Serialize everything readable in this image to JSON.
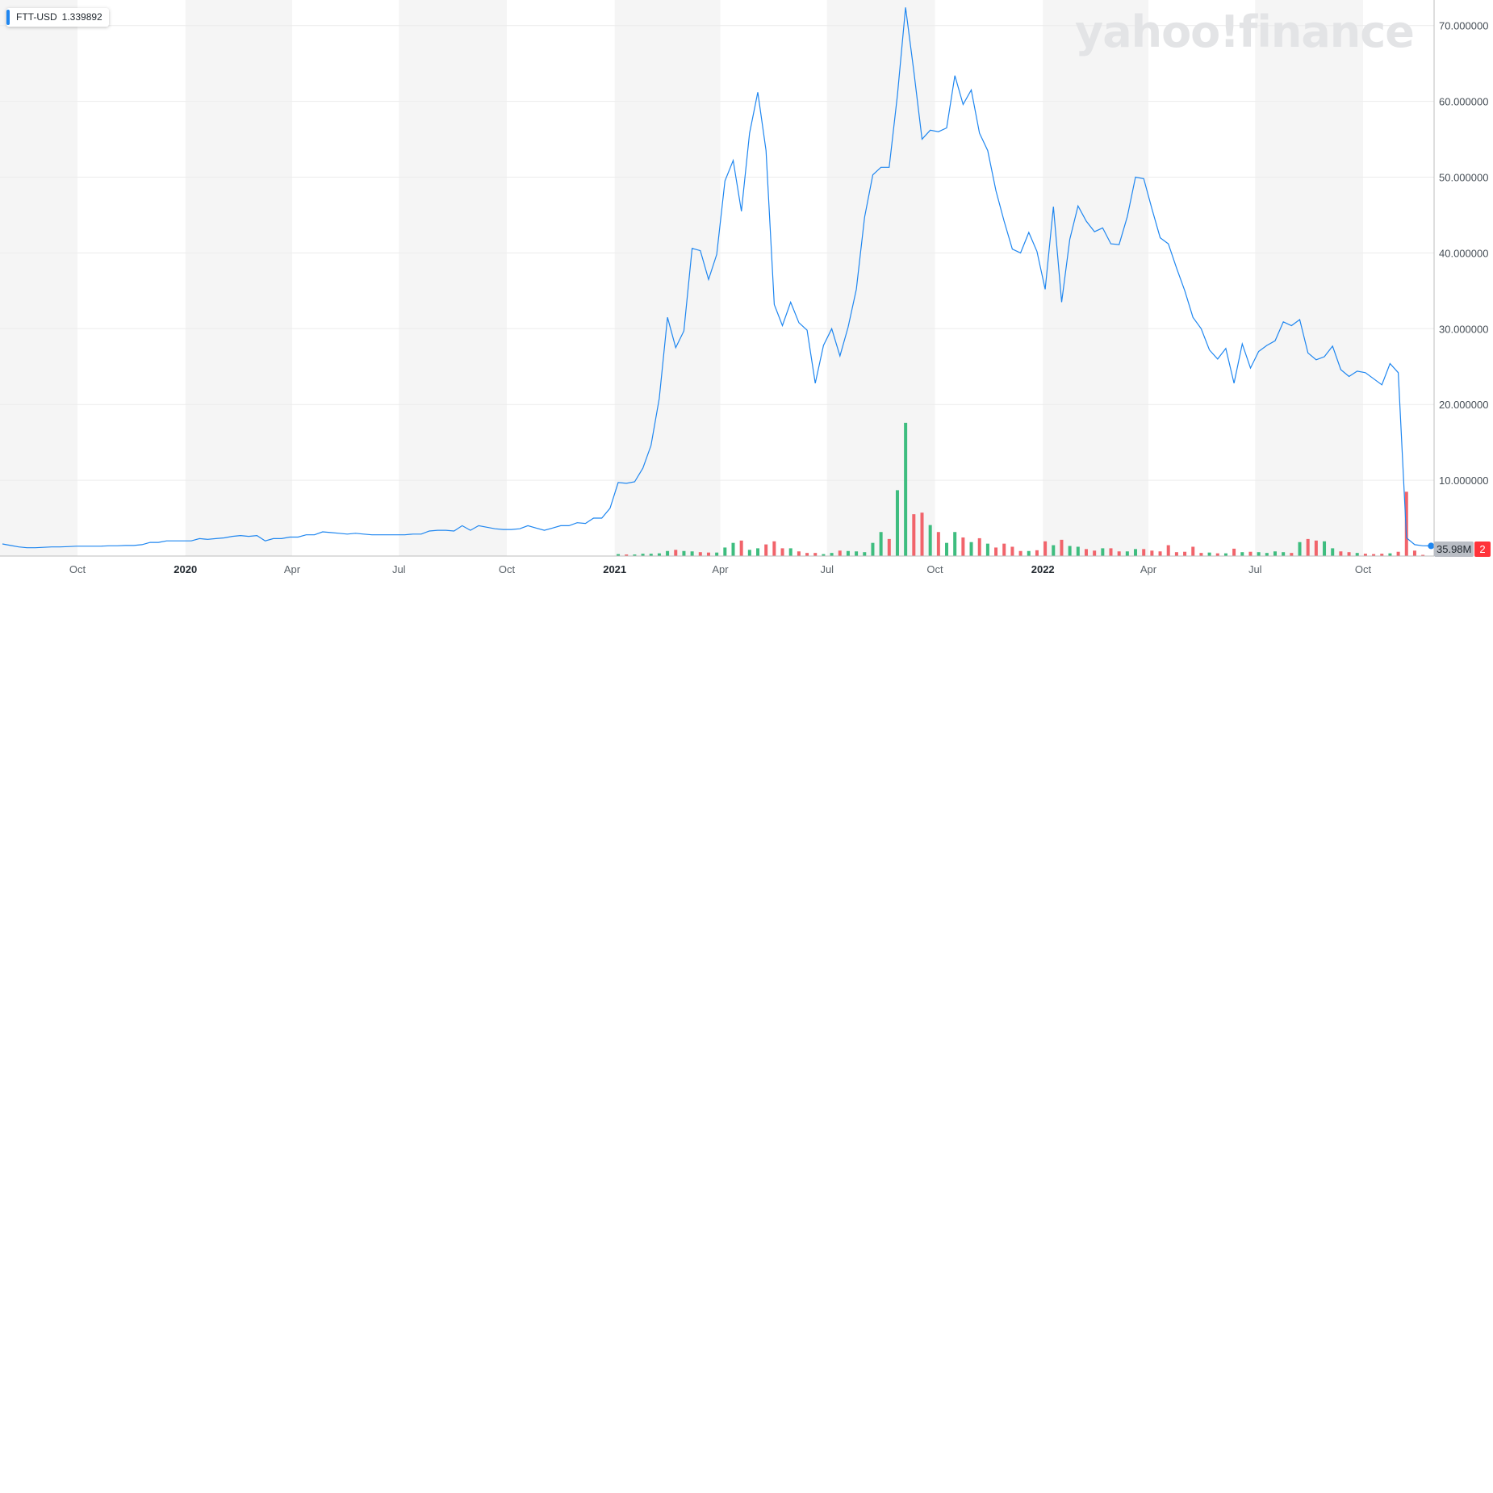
{
  "legend": {
    "symbol": "FTT-USD",
    "value": "1.339892"
  },
  "watermark": "yahoo!finance",
  "badges": {
    "volume": "35.98M",
    "price": "2"
  },
  "colors": {
    "line": "#1e86f0",
    "vol_up": "#3ebd7f",
    "vol_down": "#f1646b",
    "band": "#f5f5f5",
    "grid": "#ececec"
  },
  "chart_data": {
    "type": "line",
    "title": "",
    "xlabel": "",
    "ylabel": "",
    "ylim": [
      0,
      73
    ],
    "grid": true,
    "legend_position": "top-left",
    "y_ticks": [
      "10.000000",
      "20.000000",
      "30.000000",
      "40.000000",
      "50.000000",
      "60.000000",
      "70.000000"
    ],
    "x_ticks": [
      "Oct",
      "2020",
      "Apr",
      "Jul",
      "Oct",
      "2021",
      "Apr",
      "Jul",
      "Oct",
      "2022",
      "Apr",
      "Jul",
      "Oct"
    ],
    "x_tick_dates": [
      "2019-10-01",
      "2020-01-01",
      "2020-04-01",
      "2020-07-01",
      "2020-10-01",
      "2021-01-01",
      "2021-04-01",
      "2021-07-01",
      "2021-10-01",
      "2022-01-01",
      "2022-04-01",
      "2022-07-01",
      "2022-10-01"
    ],
    "series": [
      {
        "values": [
          [
            "2019-07-29",
            1.6
          ],
          [
            "2019-08-05",
            1.4
          ],
          [
            "2019-08-12",
            1.2
          ],
          [
            "2019-08-19",
            1.1
          ],
          [
            "2019-08-26",
            1.1
          ],
          [
            "2019-09-02",
            1.15
          ],
          [
            "2019-09-09",
            1.2
          ],
          [
            "2019-09-16",
            1.2
          ],
          [
            "2019-09-23",
            1.25
          ],
          [
            "2019-09-30",
            1.3
          ],
          [
            "2019-10-07",
            1.3
          ],
          [
            "2019-10-14",
            1.3
          ],
          [
            "2019-10-21",
            1.3
          ],
          [
            "2019-10-28",
            1.35
          ],
          [
            "2019-11-04",
            1.35
          ],
          [
            "2019-11-11",
            1.4
          ],
          [
            "2019-11-18",
            1.4
          ],
          [
            "2019-11-25",
            1.5
          ],
          [
            "2019-12-02",
            1.8
          ],
          [
            "2019-12-09",
            1.8
          ],
          [
            "2019-12-16",
            2.0
          ],
          [
            "2019-12-23",
            2.0
          ],
          [
            "2019-12-30",
            2.0
          ],
          [
            "2020-01-06",
            2.0
          ],
          [
            "2020-01-13",
            2.3
          ],
          [
            "2020-01-20",
            2.2
          ],
          [
            "2020-01-27",
            2.3
          ],
          [
            "2020-02-03",
            2.4
          ],
          [
            "2020-02-10",
            2.6
          ],
          [
            "2020-02-17",
            2.7
          ],
          [
            "2020-02-24",
            2.6
          ],
          [
            "2020-03-02",
            2.7
          ],
          [
            "2020-03-09",
            2.0
          ],
          [
            "2020-03-16",
            2.3
          ],
          [
            "2020-03-23",
            2.3
          ],
          [
            "2020-03-30",
            2.5
          ],
          [
            "2020-04-06",
            2.5
          ],
          [
            "2020-04-13",
            2.8
          ],
          [
            "2020-04-20",
            2.8
          ],
          [
            "2020-04-27",
            3.2
          ],
          [
            "2020-05-04",
            3.1
          ],
          [
            "2020-05-11",
            3.0
          ],
          [
            "2020-05-18",
            2.9
          ],
          [
            "2020-05-25",
            3.0
          ],
          [
            "2020-06-01",
            2.9
          ],
          [
            "2020-06-08",
            2.8
          ],
          [
            "2020-06-15",
            2.8
          ],
          [
            "2020-06-22",
            2.8
          ],
          [
            "2020-06-29",
            2.8
          ],
          [
            "2020-07-06",
            2.8
          ],
          [
            "2020-07-13",
            2.9
          ],
          [
            "2020-07-20",
            2.9
          ],
          [
            "2020-07-27",
            3.3
          ],
          [
            "2020-08-03",
            3.4
          ],
          [
            "2020-08-10",
            3.4
          ],
          [
            "2020-08-17",
            3.3
          ],
          [
            "2020-08-24",
            4.0
          ],
          [
            "2020-08-31",
            3.4
          ],
          [
            "2020-09-07",
            4.0
          ],
          [
            "2020-09-14",
            3.8
          ],
          [
            "2020-09-21",
            3.6
          ],
          [
            "2020-09-28",
            3.5
          ],
          [
            "2020-10-05",
            3.5
          ],
          [
            "2020-10-12",
            3.6
          ],
          [
            "2020-10-19",
            4.0
          ],
          [
            "2020-10-26",
            3.7
          ],
          [
            "2020-11-02",
            3.4
          ],
          [
            "2020-11-09",
            3.7
          ],
          [
            "2020-11-16",
            4.0
          ],
          [
            "2020-11-23",
            4.0
          ],
          [
            "2020-11-30",
            4.4
          ],
          [
            "2020-12-07",
            4.3
          ],
          [
            "2020-12-14",
            5.0
          ],
          [
            "2020-12-21",
            5.0
          ],
          [
            "2020-12-28",
            6.3
          ],
          [
            "2021-01-04",
            9.7
          ],
          [
            "2021-01-11",
            9.6
          ],
          [
            "2021-01-18",
            9.8
          ],
          [
            "2021-01-25",
            11.6
          ],
          [
            "2021-02-01",
            14.6
          ],
          [
            "2021-02-08",
            20.8
          ],
          [
            "2021-02-15",
            31.5
          ],
          [
            "2021-02-22",
            27.5
          ],
          [
            "2021-03-01",
            29.7
          ],
          [
            "2021-03-08",
            40.6
          ],
          [
            "2021-03-15",
            40.3
          ],
          [
            "2021-03-22",
            36.5
          ],
          [
            "2021-03-29",
            39.8
          ],
          [
            "2021-04-05",
            49.5
          ],
          [
            "2021-04-12",
            52.2
          ],
          [
            "2021-04-19",
            45.5
          ],
          [
            "2021-04-26",
            55.8
          ],
          [
            "2021-05-03",
            61.2
          ],
          [
            "2021-05-10",
            53.5
          ],
          [
            "2021-05-17",
            33.2
          ],
          [
            "2021-05-24",
            30.4
          ],
          [
            "2021-05-31",
            33.5
          ],
          [
            "2021-06-07",
            30.8
          ],
          [
            "2021-06-14",
            29.8
          ],
          [
            "2021-06-21",
            22.8
          ],
          [
            "2021-06-28",
            27.8
          ],
          [
            "2021-07-05",
            30.0
          ],
          [
            "2021-07-12",
            26.4
          ],
          [
            "2021-07-19",
            30.2
          ],
          [
            "2021-07-26",
            35.2
          ],
          [
            "2021-08-02",
            44.7
          ],
          [
            "2021-08-09",
            50.3
          ],
          [
            "2021-08-16",
            51.3
          ],
          [
            "2021-08-23",
            51.3
          ],
          [
            "2021-08-30",
            60.8
          ],
          [
            "2021-09-06",
            72.4
          ],
          [
            "2021-09-13",
            64.0
          ],
          [
            "2021-09-20",
            55.0
          ],
          [
            "2021-09-27",
            56.2
          ],
          [
            "2021-10-04",
            56.0
          ],
          [
            "2021-10-11",
            56.5
          ],
          [
            "2021-10-18",
            63.4
          ],
          [
            "2021-10-25",
            59.6
          ],
          [
            "2021-11-01",
            61.5
          ],
          [
            "2021-11-08",
            55.8
          ],
          [
            "2021-11-15",
            53.5
          ],
          [
            "2021-11-22",
            48.2
          ],
          [
            "2021-11-29",
            44.2
          ],
          [
            "2021-12-06",
            40.5
          ],
          [
            "2021-12-13",
            40.0
          ],
          [
            "2021-12-20",
            42.7
          ],
          [
            "2021-12-27",
            40.2
          ],
          [
            "2022-01-03",
            35.2
          ],
          [
            "2022-01-10",
            46.1
          ],
          [
            "2022-01-17",
            33.5
          ],
          [
            "2022-01-24",
            41.8
          ],
          [
            "2022-01-31",
            46.2
          ],
          [
            "2022-02-07",
            44.2
          ],
          [
            "2022-02-14",
            42.8
          ],
          [
            "2022-02-21",
            43.3
          ],
          [
            "2022-02-28",
            41.2
          ],
          [
            "2022-03-07",
            41.1
          ],
          [
            "2022-03-14",
            44.8
          ],
          [
            "2022-03-21",
            50.0
          ],
          [
            "2022-03-28",
            49.8
          ],
          [
            "2022-04-04",
            45.8
          ],
          [
            "2022-04-11",
            42.0
          ],
          [
            "2022-04-18",
            41.2
          ],
          [
            "2022-04-25",
            38.0
          ],
          [
            "2022-05-02",
            35.0
          ],
          [
            "2022-05-09",
            31.5
          ],
          [
            "2022-05-16",
            30.0
          ],
          [
            "2022-05-23",
            27.2
          ],
          [
            "2022-05-30",
            26.0
          ],
          [
            "2022-06-06",
            27.4
          ],
          [
            "2022-06-13",
            22.8
          ],
          [
            "2022-06-20",
            28.0
          ],
          [
            "2022-06-27",
            24.8
          ],
          [
            "2022-07-04",
            27.0
          ],
          [
            "2022-07-11",
            27.8
          ],
          [
            "2022-07-18",
            28.4
          ],
          [
            "2022-07-25",
            30.9
          ],
          [
            "2022-08-01",
            30.4
          ],
          [
            "2022-08-08",
            31.2
          ],
          [
            "2022-08-15",
            26.8
          ],
          [
            "2022-08-22",
            25.9
          ],
          [
            "2022-08-29",
            26.3
          ],
          [
            "2022-09-05",
            27.7
          ],
          [
            "2022-09-12",
            24.6
          ],
          [
            "2022-09-19",
            23.7
          ],
          [
            "2022-09-26",
            24.4
          ],
          [
            "2022-10-03",
            24.2
          ],
          [
            "2022-10-10",
            23.4
          ],
          [
            "2022-10-17",
            22.6
          ],
          [
            "2022-10-24",
            25.4
          ],
          [
            "2022-10-31",
            24.2
          ],
          [
            "2022-11-07",
            2.4
          ],
          [
            "2022-11-14",
            1.5
          ],
          [
            "2022-11-21",
            1.35
          ],
          [
            "2022-11-28",
            1.34
          ]
        ]
      }
    ],
    "volume": [
      [
        "2021-01-04",
        0.25,
        "up"
      ],
      [
        "2021-01-11",
        0.2,
        "down"
      ],
      [
        "2021-01-18",
        0.2,
        "up"
      ],
      [
        "2021-01-25",
        0.3,
        "up"
      ],
      [
        "2021-02-01",
        0.3,
        "up"
      ],
      [
        "2021-02-08",
        0.35,
        "up"
      ],
      [
        "2021-02-15",
        0.65,
        "up"
      ],
      [
        "2021-02-22",
        0.8,
        "down"
      ],
      [
        "2021-03-01",
        0.65,
        "up"
      ],
      [
        "2021-03-08",
        0.6,
        "up"
      ],
      [
        "2021-03-15",
        0.5,
        "down"
      ],
      [
        "2021-03-22",
        0.45,
        "down"
      ],
      [
        "2021-03-29",
        0.45,
        "up"
      ],
      [
        "2021-04-05",
        1.1,
        "up"
      ],
      [
        "2021-04-12",
        1.7,
        "up"
      ],
      [
        "2021-04-19",
        2.0,
        "down"
      ],
      [
        "2021-04-26",
        0.8,
        "up"
      ],
      [
        "2021-05-03",
        1.0,
        "up"
      ],
      [
        "2021-05-10",
        1.5,
        "down"
      ],
      [
        "2021-05-17",
        1.9,
        "down"
      ],
      [
        "2021-05-24",
        1.0,
        "down"
      ],
      [
        "2021-05-31",
        1.0,
        "up"
      ],
      [
        "2021-06-07",
        0.6,
        "down"
      ],
      [
        "2021-06-14",
        0.4,
        "down"
      ],
      [
        "2021-06-21",
        0.4,
        "down"
      ],
      [
        "2021-06-28",
        0.25,
        "up"
      ],
      [
        "2021-07-05",
        0.4,
        "up"
      ],
      [
        "2021-07-12",
        0.7,
        "down"
      ],
      [
        "2021-07-19",
        0.65,
        "up"
      ],
      [
        "2021-07-26",
        0.6,
        "up"
      ],
      [
        "2021-08-02",
        0.5,
        "up"
      ],
      [
        "2021-08-09",
        1.7,
        "up"
      ],
      [
        "2021-08-16",
        3.1,
        "up"
      ],
      [
        "2021-08-23",
        2.2,
        "down"
      ],
      [
        "2021-08-30",
        8.5,
        "up"
      ],
      [
        "2021-09-06",
        17.2,
        "up"
      ],
      [
        "2021-09-13",
        5.4,
        "down"
      ],
      [
        "2021-09-20",
        5.6,
        "down"
      ],
      [
        "2021-09-27",
        4.0,
        "up"
      ],
      [
        "2021-10-04",
        3.1,
        "down"
      ],
      [
        "2021-10-11",
        1.7,
        "up"
      ],
      [
        "2021-10-18",
        3.1,
        "up"
      ],
      [
        "2021-10-25",
        2.4,
        "down"
      ],
      [
        "2021-11-01",
        1.8,
        "up"
      ],
      [
        "2021-11-08",
        2.3,
        "down"
      ],
      [
        "2021-11-15",
        1.6,
        "up"
      ],
      [
        "2021-11-22",
        1.1,
        "down"
      ],
      [
        "2021-11-29",
        1.6,
        "down"
      ],
      [
        "2021-12-06",
        1.2,
        "down"
      ],
      [
        "2021-12-13",
        0.65,
        "down"
      ],
      [
        "2021-12-20",
        0.65,
        "up"
      ],
      [
        "2021-12-27",
        0.75,
        "down"
      ],
      [
        "2022-01-03",
        1.9,
        "down"
      ],
      [
        "2022-01-10",
        1.4,
        "up"
      ],
      [
        "2022-01-17",
        2.1,
        "down"
      ],
      [
        "2022-01-24",
        1.3,
        "up"
      ],
      [
        "2022-01-31",
        1.2,
        "up"
      ],
      [
        "2022-02-07",
        0.9,
        "down"
      ],
      [
        "2022-02-14",
        0.7,
        "down"
      ],
      [
        "2022-02-21",
        1.0,
        "up"
      ],
      [
        "2022-02-28",
        1.0,
        "down"
      ],
      [
        "2022-03-07",
        0.6,
        "down"
      ],
      [
        "2022-03-14",
        0.6,
        "up"
      ],
      [
        "2022-03-21",
        0.9,
        "up"
      ],
      [
        "2022-03-28",
        0.9,
        "down"
      ],
      [
        "2022-04-04",
        0.7,
        "down"
      ],
      [
        "2022-04-11",
        0.6,
        "down"
      ],
      [
        "2022-04-18",
        1.4,
        "down"
      ],
      [
        "2022-04-25",
        0.5,
        "down"
      ],
      [
        "2022-05-02",
        0.55,
        "down"
      ],
      [
        "2022-05-09",
        1.2,
        "down"
      ],
      [
        "2022-05-16",
        0.4,
        "down"
      ],
      [
        "2022-05-23",
        0.45,
        "up"
      ],
      [
        "2022-05-30",
        0.35,
        "down"
      ],
      [
        "2022-06-06",
        0.35,
        "up"
      ],
      [
        "2022-06-13",
        0.95,
        "down"
      ],
      [
        "2022-06-20",
        0.5,
        "up"
      ],
      [
        "2022-06-27",
        0.55,
        "down"
      ],
      [
        "2022-07-04",
        0.5,
        "up"
      ],
      [
        "2022-07-11",
        0.4,
        "up"
      ],
      [
        "2022-07-18",
        0.6,
        "up"
      ],
      [
        "2022-07-25",
        0.5,
        "up"
      ],
      [
        "2022-08-01",
        0.4,
        "down"
      ],
      [
        "2022-08-08",
        1.8,
        "up"
      ],
      [
        "2022-08-15",
        2.2,
        "down"
      ],
      [
        "2022-08-22",
        2.0,
        "down"
      ],
      [
        "2022-08-29",
        1.9,
        "up"
      ],
      [
        "2022-09-05",
        1.0,
        "up"
      ],
      [
        "2022-09-12",
        0.6,
        "down"
      ],
      [
        "2022-09-19",
        0.5,
        "down"
      ],
      [
        "2022-09-26",
        0.4,
        "up"
      ],
      [
        "2022-10-03",
        0.3,
        "down"
      ],
      [
        "2022-10-10",
        0.25,
        "down"
      ],
      [
        "2022-10-17",
        0.3,
        "down"
      ],
      [
        "2022-10-24",
        0.35,
        "up"
      ],
      [
        "2022-10-31",
        0.55,
        "down"
      ],
      [
        "2022-11-07",
        8.3,
        "down"
      ],
      [
        "2022-11-14",
        0.7,
        "down"
      ],
      [
        "2022-11-21",
        0.15,
        "down"
      ]
    ]
  }
}
